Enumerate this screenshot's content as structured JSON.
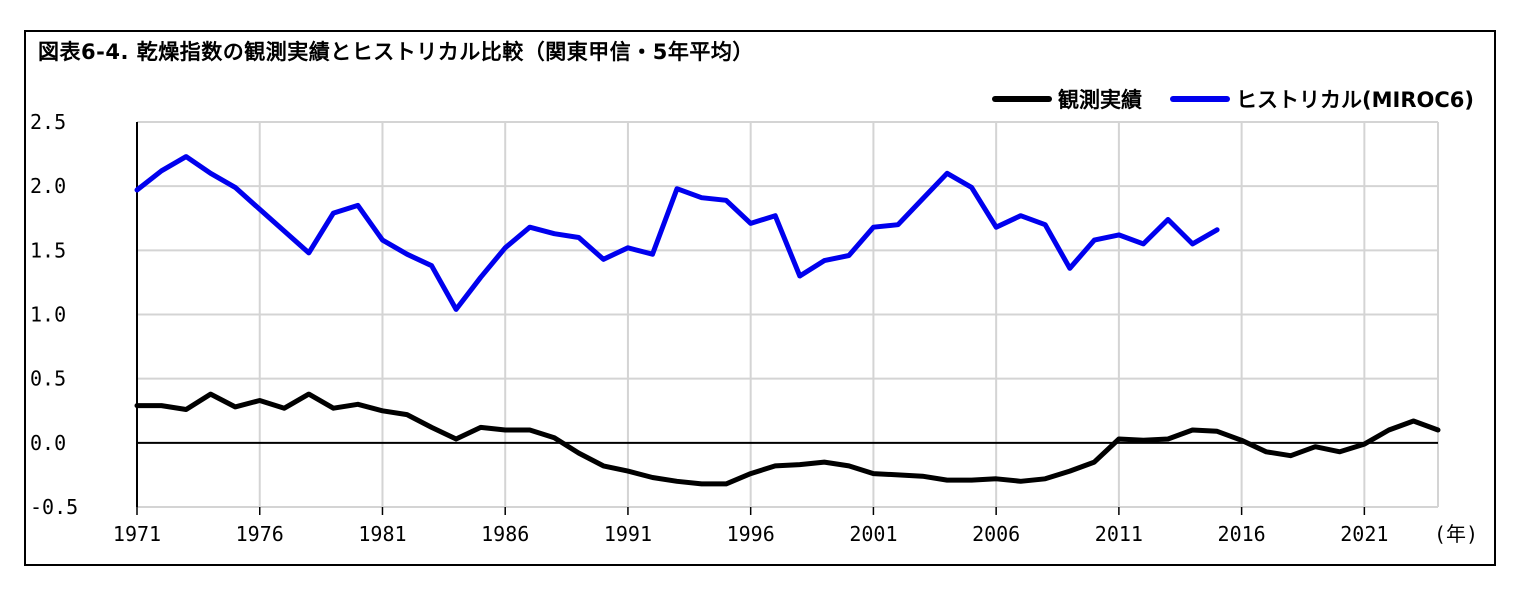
{
  "chart_data": {
    "type": "line",
    "title": "図表6-4. 乾燥指数の観測実績とヒストリカル比較（関東甲信・5年平均）",
    "xlabel": "(年)",
    "ylabel": "",
    "ylim": [
      -0.5,
      2.5
    ],
    "xlim": [
      1971,
      2024
    ],
    "grid": true,
    "legend_position": "top-right",
    "x_ticks": [
      "1971",
      "1976",
      "1981",
      "1986",
      "1991",
      "1996",
      "2001",
      "2006",
      "2011",
      "2016",
      "2021"
    ],
    "y_ticks": [
      "2.5",
      "2.0",
      "1.5",
      "1.0",
      "0.5",
      "0.0",
      "-0.5"
    ],
    "colors": {
      "observed": "#000000",
      "historical": "#0000ee",
      "grid": "#d4d4d4"
    },
    "series": [
      {
        "name": "観測実績",
        "x": [
          1971,
          1972,
          1973,
          1974,
          1975,
          1976,
          1977,
          1978,
          1979,
          1980,
          1981,
          1982,
          1983,
          1984,
          1985,
          1986,
          1987,
          1988,
          1989,
          1990,
          1991,
          1992,
          1993,
          1994,
          1995,
          1996,
          1997,
          1998,
          1999,
          2000,
          2001,
          2002,
          2003,
          2004,
          2005,
          2006,
          2007,
          2008,
          2009,
          2010,
          2011,
          2012,
          2013,
          2014,
          2015,
          2016,
          2017,
          2018,
          2019,
          2020,
          2021,
          2022,
          2023,
          2024
        ],
        "values": [
          0.29,
          0.29,
          0.26,
          0.38,
          0.28,
          0.33,
          0.27,
          0.38,
          0.27,
          0.3,
          0.25,
          0.22,
          0.12,
          0.03,
          0.12,
          0.1,
          0.1,
          0.04,
          -0.08,
          -0.18,
          -0.22,
          -0.27,
          -0.3,
          -0.32,
          -0.32,
          -0.24,
          -0.18,
          -0.17,
          -0.15,
          -0.18,
          -0.24,
          -0.25,
          -0.26,
          -0.29,
          -0.29,
          -0.28,
          -0.3,
          -0.28,
          -0.22,
          -0.15,
          0.03,
          0.02,
          0.03,
          0.1,
          0.09,
          0.02,
          -0.07,
          -0.1,
          -0.03,
          -0.07,
          -0.01,
          0.1,
          0.17,
          0.1
        ]
      },
      {
        "name": "ヒストリカル(MIROC6)",
        "x": [
          1971,
          1972,
          1973,
          1974,
          1975,
          1976,
          1977,
          1978,
          1979,
          1980,
          1981,
          1982,
          1983,
          1984,
          1985,
          1986,
          1987,
          1988,
          1989,
          1990,
          1991,
          1992,
          1993,
          1994,
          1995,
          1996,
          1997,
          1998,
          1999,
          2000,
          2001,
          2002,
          2003,
          2004,
          2005,
          2006,
          2007,
          2008,
          2009,
          2010,
          2011,
          2012,
          2013,
          2014,
          2015
        ],
        "values": [
          1.97,
          2.12,
          2.23,
          2.1,
          1.99,
          1.82,
          1.65,
          1.48,
          1.79,
          1.85,
          1.58,
          1.47,
          1.38,
          1.04,
          1.29,
          1.52,
          1.68,
          1.63,
          1.6,
          1.43,
          1.52,
          1.47,
          1.98,
          1.91,
          1.89,
          1.71,
          1.77,
          1.3,
          1.42,
          1.46,
          1.68,
          1.7,
          1.9,
          2.1,
          1.99,
          1.68,
          1.77,
          1.7,
          1.36,
          1.58,
          1.62,
          1.55,
          1.74,
          1.55,
          1.66
        ]
      }
    ]
  }
}
